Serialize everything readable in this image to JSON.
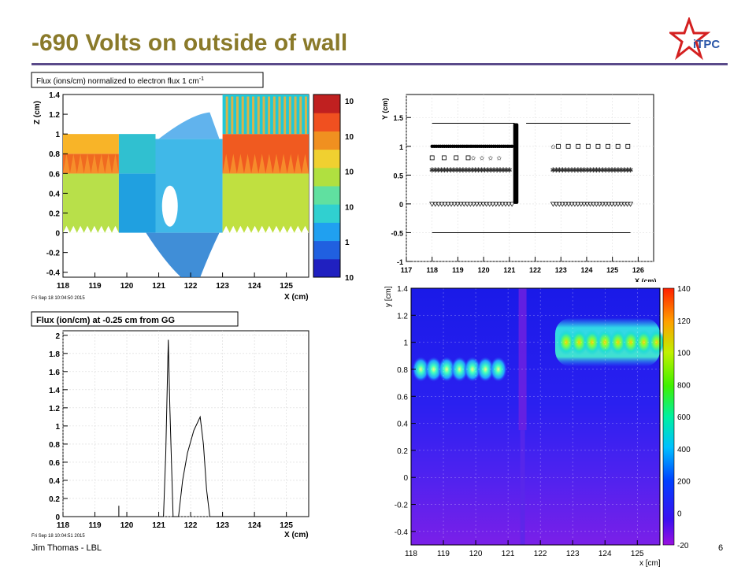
{
  "slide": {
    "title": "-690 Volts on outside of wall",
    "footer": "Jim Thomas - LBL",
    "page": "6",
    "logo_text": "iTPC",
    "colors": {
      "title": "#8a7a2a",
      "rule": "#5a4a8a",
      "logo_star": "#d42020",
      "logo_text": "#2a56a8"
    }
  },
  "chart_data": [
    {
      "id": "flux-2d",
      "type": "heatmap",
      "title": "Flux (ions/cm) normalized to electron flux 1 cm",
      "title_superscript": "-1",
      "xlabel": "X (cm)",
      "ylabel": "Z (cm)",
      "xlim": [
        118,
        125.7
      ],
      "ylim": [
        -0.45,
        1.4
      ],
      "xticks": [
        "118",
        "119",
        "120",
        "121",
        "122",
        "123",
        "124",
        "125"
      ],
      "yticks": [
        "-0.4",
        "-0.2",
        "0",
        "0.2",
        "0.4",
        "0.6",
        "0.8",
        "1",
        "1.2",
        "1.4"
      ],
      "colorbar_labels": [
        "10",
        "10",
        "10",
        "10",
        "1",
        "10"
      ],
      "colorbar_scale": "log",
      "timestamp": "Fri Sep 18 10:04:50 2015",
      "regions": [
        {
          "x0": 118.0,
          "x1": 119.75,
          "y0": 0.0,
          "y1": 0.6,
          "color": "#b8e04a"
        },
        {
          "x0": 118.0,
          "x1": 119.75,
          "y0": 0.6,
          "y1": 0.8,
          "color": "#f06a20"
        },
        {
          "x0": 118.0,
          "x1": 119.75,
          "y0": 0.8,
          "y1": 1.0,
          "color": "#f8b428"
        },
        {
          "x0": 119.75,
          "x1": 120.9,
          "y0": 0.0,
          "y1": 0.6,
          "color": "#20a0e0"
        },
        {
          "x0": 119.75,
          "x1": 120.9,
          "y0": 0.6,
          "y1": 1.0,
          "color": "#30c0d0"
        },
        {
          "x0": 120.9,
          "x1": 123.0,
          "y0": 0.0,
          "y1": 0.95,
          "color": "#40b8e8"
        },
        {
          "x0": 123.0,
          "x1": 125.7,
          "y0": 0.0,
          "y1": 0.6,
          "color": "#c0e040"
        },
        {
          "x0": 123.0,
          "x1": 125.7,
          "y0": 0.6,
          "y1": 1.0,
          "color": "#f05a20"
        },
        {
          "x0": 123.0,
          "x1": 125.7,
          "y0": 1.0,
          "y1": 1.4,
          "color": "#20c8d8"
        }
      ]
    },
    {
      "id": "electrode-layout",
      "type": "scatter",
      "xlabel": "X (cm)",
      "ylabel": "Y (cm)",
      "xlim": [
        117,
        126.6
      ],
      "ylim": [
        -1.0,
        1.9
      ],
      "xticks": [
        "117",
        "118",
        "119",
        "120",
        "121",
        "122",
        "123",
        "124",
        "125",
        "126"
      ],
      "yticks": [
        "-1",
        "-0.5",
        "0",
        "0.5",
        "1",
        "1.5"
      ],
      "series": [
        {
          "marker": "dot",
          "y": 1.0,
          "x": [
            118.0,
            121.1
          ],
          "n": 40
        },
        {
          "marker": "square",
          "y": 0.8,
          "x": [
            118.0,
            119.4
          ],
          "n": 4
        },
        {
          "marker": "square",
          "y": 1.0,
          "x": [
            122.9,
            125.6
          ],
          "n": 8
        },
        {
          "marker": "star",
          "y": 0.8,
          "x": [
            119.6,
            120.6
          ],
          "n": 4
        },
        {
          "marker": "star",
          "y": 1.0,
          "x": [
            122.7,
            122.7
          ],
          "n": 1
        },
        {
          "marker": "asterisk",
          "y": 0.6,
          "x": [
            118.0,
            121.0
          ],
          "n": 26
        },
        {
          "marker": "asterisk",
          "y": 0.6,
          "x": [
            122.7,
            125.7
          ],
          "n": 26
        },
        {
          "marker": "triangle-down",
          "y": 0.0,
          "x": [
            118.0,
            121.1
          ],
          "n": 26
        },
        {
          "marker": "triangle-down",
          "y": 0.0,
          "x": [
            122.7,
            125.7
          ],
          "n": 26
        }
      ],
      "lines": [
        {
          "x": [
            118.0,
            121.2
          ],
          "y": [
            1.4,
            1.4
          ]
        },
        {
          "x": [
            121.65,
            125.7
          ],
          "y": [
            1.4,
            1.4
          ]
        },
        {
          "x": [
            118.0,
            125.7
          ],
          "y": [
            -0.5,
            -0.5
          ]
        }
      ],
      "wall": {
        "x": [
          121.15,
          121.35
        ],
        "y": [
          0.0,
          1.4
        ]
      }
    },
    {
      "id": "flux-line",
      "type": "line",
      "title": "Flux (ion/cm) at -0.25 cm from GG",
      "xlabel": "X (cm)",
      "ylabel": "",
      "xlim": [
        118,
        125.7
      ],
      "ylim": [
        0,
        2.05
      ],
      "xticks": [
        "118",
        "119",
        "120",
        "121",
        "122",
        "123",
        "124",
        "125"
      ],
      "yticks": [
        "0",
        "0.2",
        "0.4",
        "0.6",
        "0.8",
        "1",
        "1.2",
        "1.4",
        "1.6",
        "1.8",
        "2"
      ],
      "timestamp": "Fri Sep 18 10:04:51 2015",
      "x": [
        118.0,
        119.75,
        119.75,
        119.75,
        120.0,
        121.15,
        121.22,
        121.3,
        121.35,
        121.45,
        121.6,
        121.62,
        121.75,
        121.9,
        122.1,
        122.3,
        122.4,
        122.5,
        122.6,
        122.7,
        125.7
      ],
      "y": [
        0.0,
        0.0,
        0.12,
        0.0,
        0.0,
        0.0,
        0.7,
        1.95,
        1.2,
        0.0,
        0.0,
        0.0,
        0.4,
        0.7,
        0.95,
        1.1,
        0.8,
        0.3,
        0.0,
        0.0,
        0.0
      ]
    },
    {
      "id": "field-map",
      "type": "heatmap",
      "xlabel": "x [cm]",
      "ylabel": "y [cm]",
      "xlim": [
        118,
        125.7
      ],
      "ylim": [
        -0.5,
        1.4
      ],
      "xticks": [
        "118",
        "119",
        "120",
        "121",
        "122",
        "123",
        "124",
        "125"
      ],
      "yticks": [
        "-0.4",
        "-0.2",
        "0",
        "0.2",
        "0.4",
        "0.6",
        "0.8",
        "1",
        "1.2",
        "1.4"
      ],
      "colorbar_labels": [
        "-20",
        "0",
        "200",
        "400",
        "600",
        "800",
        "100",
        "120",
        "140"
      ],
      "hotspots_low": {
        "y": 0.8,
        "x": [
          118.3,
          118.7,
          119.1,
          119.5,
          119.9,
          120.3,
          120.7
        ]
      },
      "hotspots_high": {
        "y": 1.0,
        "x": [
          122.8,
          123.2,
          123.6,
          124.0,
          124.4,
          124.8,
          125.2,
          125.6
        ]
      },
      "wall_x": 121.45
    }
  ]
}
